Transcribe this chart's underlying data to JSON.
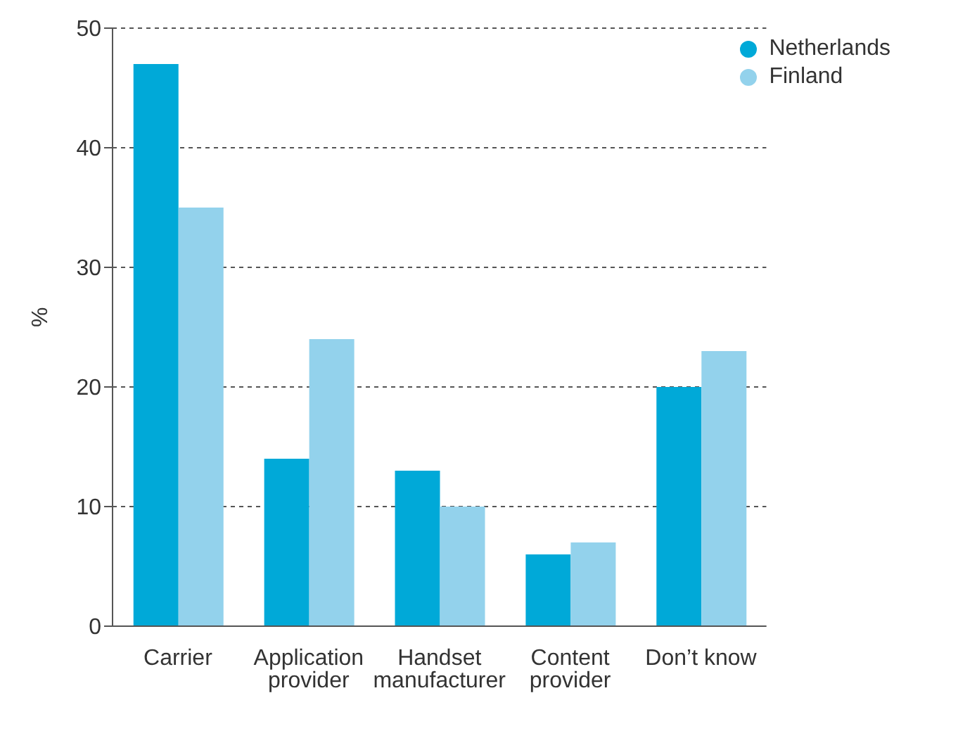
{
  "chart_data": {
    "type": "bar",
    "ylabel": "%",
    "categories": [
      "Carrier",
      "Application provider",
      "Handset manufacturer",
      "Content provider",
      "Don’t know"
    ],
    "series": [
      {
        "name": "Netherlands",
        "color": "#00a9d8",
        "values": [
          47,
          14,
          13,
          6,
          20
        ]
      },
      {
        "name": "Finland",
        "color": "#93d2ec",
        "values": [
          35,
          24,
          10,
          7,
          23
        ]
      }
    ],
    "ylim": [
      0,
      50
    ],
    "yticks": [
      0,
      10,
      20,
      30,
      40,
      50
    ],
    "grid": "y",
    "legend": "top right"
  }
}
